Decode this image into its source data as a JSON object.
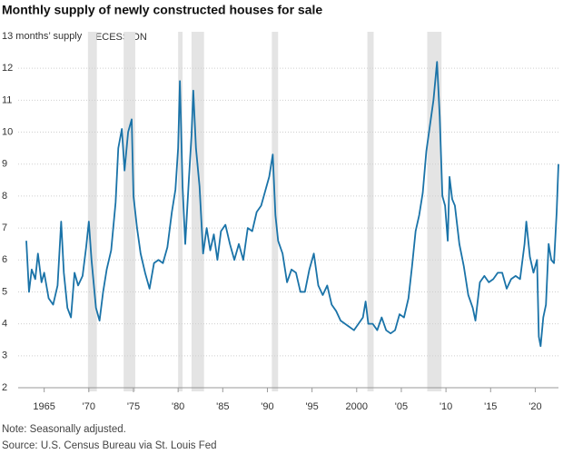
{
  "chart_data": {
    "type": "line",
    "title": "Monthly supply of newly constructed houses for sale",
    "recession_label": "RECESSION",
    "note": "Note: Seasonally adjusted.",
    "source": "Source: U.S. Census Bureau via St. Louis Fed",
    "xlim": [
      1963,
      2022.6
    ],
    "ylim": [
      2,
      13
    ],
    "xticks": [
      1965,
      {
        "value": 1970,
        "label": "'70"
      },
      {
        "value": 1975,
        "label": "'75"
      },
      {
        "value": 1980,
        "label": "'80"
      },
      {
        "value": 1985,
        "label": "'85"
      },
      {
        "value": 1990,
        "label": "'90"
      },
      {
        "value": 1995,
        "label": "'95"
      },
      2000,
      {
        "value": 2005,
        "label": "'05"
      },
      {
        "value": 2010,
        "label": "'10"
      },
      {
        "value": 2015,
        "label": "'15"
      },
      {
        "value": 2020,
        "label": "'20"
      }
    ],
    "yticks": [
      2,
      3,
      4,
      5,
      6,
      7,
      8,
      9,
      10,
      11,
      12,
      {
        "value": 13,
        "label": "13 months’ supply"
      }
    ],
    "grid": true,
    "recessions": [
      [
        1969.9,
        1970.9
      ],
      [
        1973.9,
        1975.2
      ],
      [
        1980.0,
        1980.5
      ],
      [
        1981.5,
        1982.9
      ],
      [
        1990.5,
        1991.2
      ],
      [
        2001.2,
        2001.9
      ],
      [
        2007.9,
        2009.5
      ]
    ],
    "recession_color": "#e4e4e4",
    "x": [
      1963.0,
      1963.3,
      1963.6,
      1964.0,
      1964.3,
      1964.7,
      1965.0,
      1965.5,
      1966.0,
      1966.5,
      1966.9,
      1967.2,
      1967.6,
      1968.0,
      1968.4,
      1968.8,
      1969.3,
      1969.7,
      1970.0,
      1970.3,
      1970.8,
      1971.2,
      1971.6,
      1972.0,
      1972.5,
      1973.0,
      1973.3,
      1973.7,
      1974.0,
      1974.4,
      1974.8,
      1975.0,
      1975.4,
      1975.8,
      1976.3,
      1976.8,
      1977.3,
      1977.8,
      1978.3,
      1978.8,
      1979.3,
      1979.7,
      1980.0,
      1980.2,
      1980.5,
      1980.8,
      1981.2,
      1981.5,
      1981.7,
      1982.0,
      1982.4,
      1982.8,
      1983.2,
      1983.6,
      1984.0,
      1984.4,
      1984.8,
      1985.3,
      1985.8,
      1986.3,
      1986.8,
      1987.3,
      1987.8,
      1988.3,
      1988.8,
      1989.3,
      1989.8,
      1990.2,
      1990.6,
      1990.9,
      1991.2,
      1991.7,
      1992.2,
      1992.7,
      1993.2,
      1993.7,
      1994.2,
      1994.7,
      1995.2,
      1995.7,
      1996.2,
      1996.7,
      1997.2,
      1997.7,
      1998.2,
      1998.7,
      1999.2,
      1999.7,
      2000.2,
      2000.7,
      2001.0,
      2001.3,
      2001.8,
      2002.3,
      2002.8,
      2003.3,
      2003.8,
      2004.3,
      2004.8,
      2005.3,
      2005.8,
      2006.2,
      2006.6,
      2007.0,
      2007.4,
      2007.8,
      2008.2,
      2008.6,
      2009.0,
      2009.3,
      2009.6,
      2009.9,
      2010.2,
      2010.4,
      2010.7,
      2011.0,
      2011.5,
      2012.0,
      2012.5,
      2013.0,
      2013.3,
      2013.8,
      2014.3,
      2014.8,
      2015.3,
      2015.8,
      2016.3,
      2016.8,
      2017.3,
      2017.8,
      2018.3,
      2018.8,
      2019.0,
      2019.4,
      2019.8,
      2020.2,
      2020.4,
      2020.6,
      2020.9,
      2021.2,
      2021.5,
      2021.8,
      2022.1,
      2022.4,
      2022.6
    ],
    "series": [
      {
        "color": "#1a73a8",
        "values": [
          6.6,
          5.0,
          5.7,
          5.4,
          6.2,
          5.3,
          5.6,
          4.8,
          4.6,
          5.2,
          7.2,
          5.6,
          4.5,
          4.2,
          5.6,
          5.2,
          5.5,
          6.4,
          7.2,
          6.0,
          4.5,
          4.1,
          5.0,
          5.7,
          6.3,
          7.8,
          9.5,
          10.1,
          8.8,
          10.0,
          10.4,
          8.0,
          7.0,
          6.2,
          5.6,
          5.1,
          5.9,
          6.0,
          5.9,
          6.4,
          7.5,
          8.2,
          9.5,
          11.6,
          8.3,
          6.5,
          8.5,
          9.9,
          11.3,
          9.5,
          8.3,
          6.2,
          7.0,
          6.3,
          6.8,
          6.0,
          6.9,
          7.1,
          6.5,
          6.0,
          6.5,
          6.0,
          7.0,
          6.9,
          7.5,
          7.7,
          8.2,
          8.6,
          9.3,
          7.4,
          6.6,
          6.2,
          5.3,
          5.7,
          5.6,
          5.0,
          5.0,
          5.7,
          6.2,
          5.2,
          4.9,
          5.2,
          4.6,
          4.4,
          4.1,
          4.0,
          3.9,
          3.8,
          4.0,
          4.2,
          4.7,
          4.0,
          4.0,
          3.8,
          4.2,
          3.8,
          3.7,
          3.8,
          4.3,
          4.2,
          4.8,
          5.8,
          6.9,
          7.4,
          8.1,
          9.4,
          10.2,
          11.0,
          12.2,
          10.5,
          8.0,
          7.7,
          6.6,
          8.6,
          7.9,
          7.7,
          6.5,
          5.8,
          4.9,
          4.5,
          4.1,
          5.3,
          5.5,
          5.3,
          5.4,
          5.6,
          5.6,
          5.1,
          5.4,
          5.5,
          5.4,
          6.5,
          7.2,
          6.1,
          5.6,
          6.0,
          3.6,
          3.3,
          4.2,
          4.6,
          6.5,
          6.0,
          5.9,
          7.5,
          9.0
        ]
      }
    ]
  }
}
